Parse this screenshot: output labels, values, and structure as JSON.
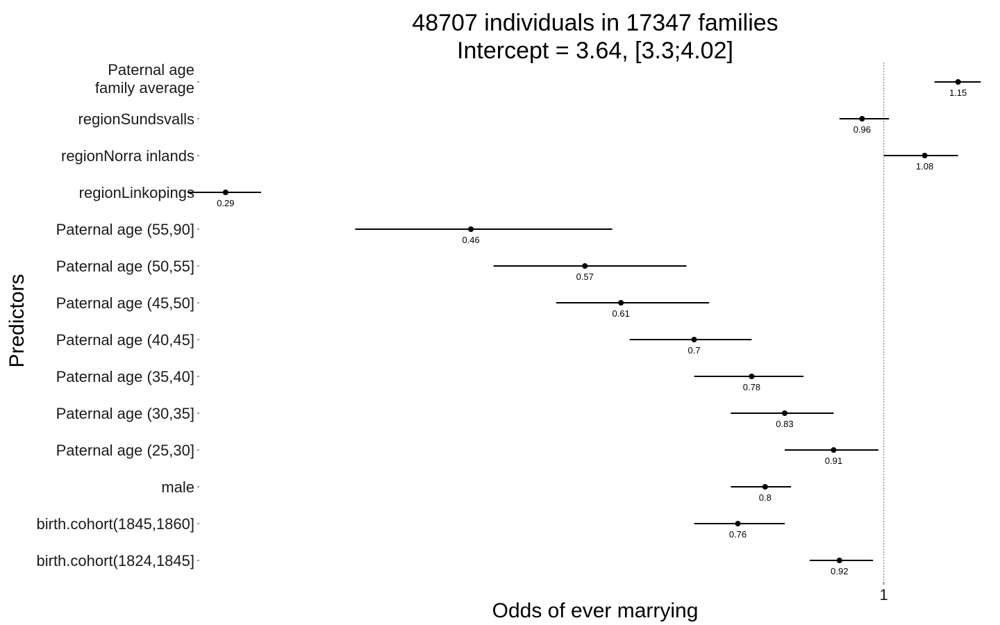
{
  "chart_data": {
    "type": "forest",
    "title": [
      "48707 individuals in 17347 families",
      "Intercept = 3.64, [3.3;4.02]"
    ],
    "xlabel": "Odds of ever marrying",
    "ylabel": "Predictors",
    "x_scale": "log",
    "xlim": [
      0.276,
      1.225
    ],
    "reference_line": 1,
    "x_ticks": [
      {
        "value": 1,
        "label": "1"
      }
    ],
    "rows": [
      {
        "label": [
          "Paternal age",
          "family average"
        ],
        "estimate": 1.15,
        "value_label": "1.15",
        "ci_low": 1.1,
        "ci_high": 1.2
      },
      {
        "label": [
          "regionSundsvalls"
        ],
        "estimate": 0.96,
        "value_label": "0.96",
        "ci_low": 0.92,
        "ci_high": 1.01
      },
      {
        "label": [
          "regionNorra inlands"
        ],
        "estimate": 1.08,
        "value_label": "1.08",
        "ci_low": 1.0,
        "ci_high": 1.15
      },
      {
        "label": [
          "regionLinkopings"
        ],
        "estimate": 0.29,
        "value_label": "0.29",
        "ci_low": 0.27,
        "ci_high": 0.31
      },
      {
        "label": [
          "Paternal age (55,90]"
        ],
        "estimate": 0.46,
        "value_label": "0.46",
        "ci_low": 0.37,
        "ci_high": 0.6
      },
      {
        "label": [
          "Paternal age (50,55]"
        ],
        "estimate": 0.57,
        "value_label": "0.57",
        "ci_low": 0.48,
        "ci_high": 0.69
      },
      {
        "label": [
          "Paternal age (45,50]"
        ],
        "estimate": 0.61,
        "value_label": "0.61",
        "ci_low": 0.54,
        "ci_high": 0.72
      },
      {
        "label": [
          "Paternal age (40,45]"
        ],
        "estimate": 0.7,
        "value_label": "0.7",
        "ci_low": 0.62,
        "ci_high": 0.78
      },
      {
        "label": [
          "Paternal age (35,40]"
        ],
        "estimate": 0.78,
        "value_label": "0.78",
        "ci_low": 0.7,
        "ci_high": 0.86
      },
      {
        "label": [
          "Paternal age (30,35]"
        ],
        "estimate": 0.83,
        "value_label": "0.83",
        "ci_low": 0.75,
        "ci_high": 0.91
      },
      {
        "label": [
          "Paternal age (25,30]"
        ],
        "estimate": 0.91,
        "value_label": "0.91",
        "ci_low": 0.83,
        "ci_high": 0.99
      },
      {
        "label": [
          "male"
        ],
        "estimate": 0.8,
        "value_label": "0.8",
        "ci_low": 0.75,
        "ci_high": 0.84
      },
      {
        "label": [
          "birth.cohort(1845,1860]"
        ],
        "estimate": 0.76,
        "value_label": "0.76",
        "ci_low": 0.7,
        "ci_high": 0.83
      },
      {
        "label": [
          "birth.cohort(1824,1845]"
        ],
        "estimate": 0.92,
        "value_label": "0.92",
        "ci_low": 0.87,
        "ci_high": 0.98
      }
    ],
    "colors": {
      "points": "#000000",
      "ci_lines": "#000000",
      "reference_line": "#888888",
      "text": "#1a1a1a"
    }
  }
}
